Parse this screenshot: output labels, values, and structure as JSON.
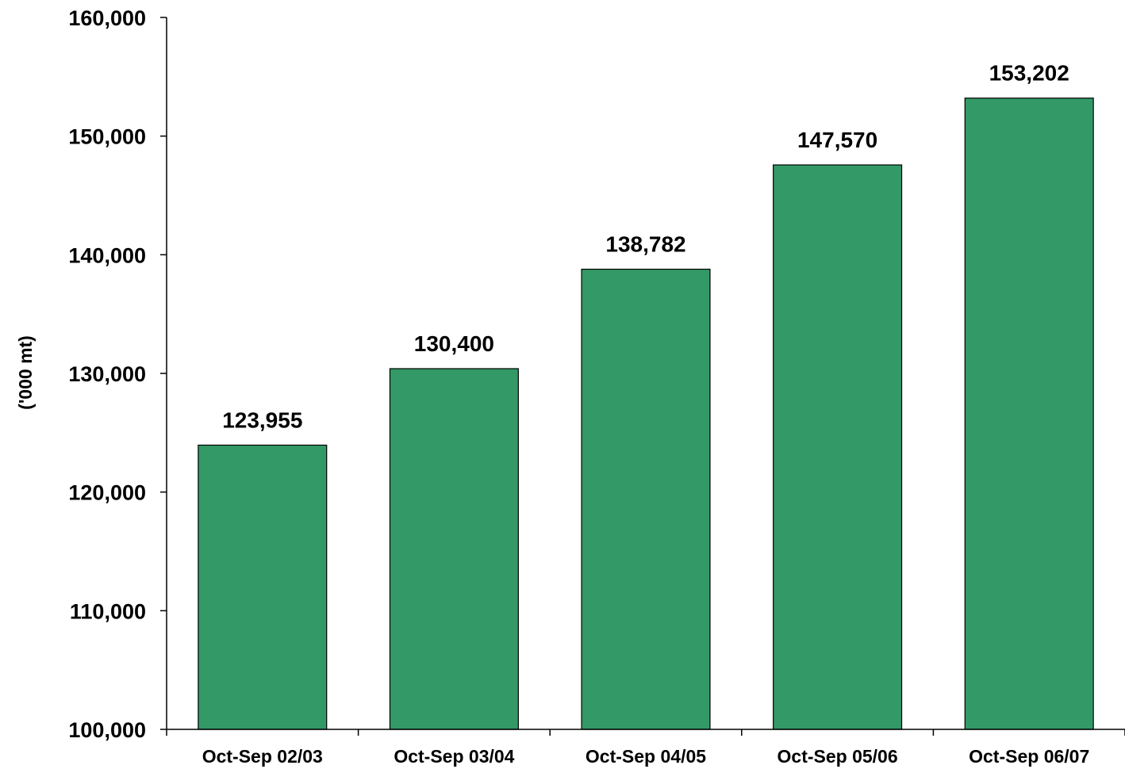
{
  "chart_data": {
    "type": "bar",
    "title": "",
    "xlabel": "",
    "ylabel": "('000 mt)",
    "categories": [
      "Oct-Sep 02/03",
      "Oct-Sep 03/04",
      "Oct-Sep 04/05",
      "Oct-Sep 05/06",
      "Oct-Sep 06/07"
    ],
    "values": [
      123955,
      130400,
      138782,
      147570,
      153202
    ],
    "value_labels": [
      "123,955",
      "130,400",
      "138,782",
      "147,570",
      "153,202"
    ],
    "ylim": [
      100000,
      160000
    ],
    "yticks": [
      100000,
      110000,
      120000,
      130000,
      140000,
      150000,
      160000
    ],
    "ytick_labels": [
      "100,000",
      "110,000",
      "120,000",
      "130,000",
      "140,000",
      "150,000",
      "160,000"
    ],
    "grid": false,
    "legend": "none",
    "bar_color": "#339966",
    "bar_edge_color": "#000000"
  }
}
